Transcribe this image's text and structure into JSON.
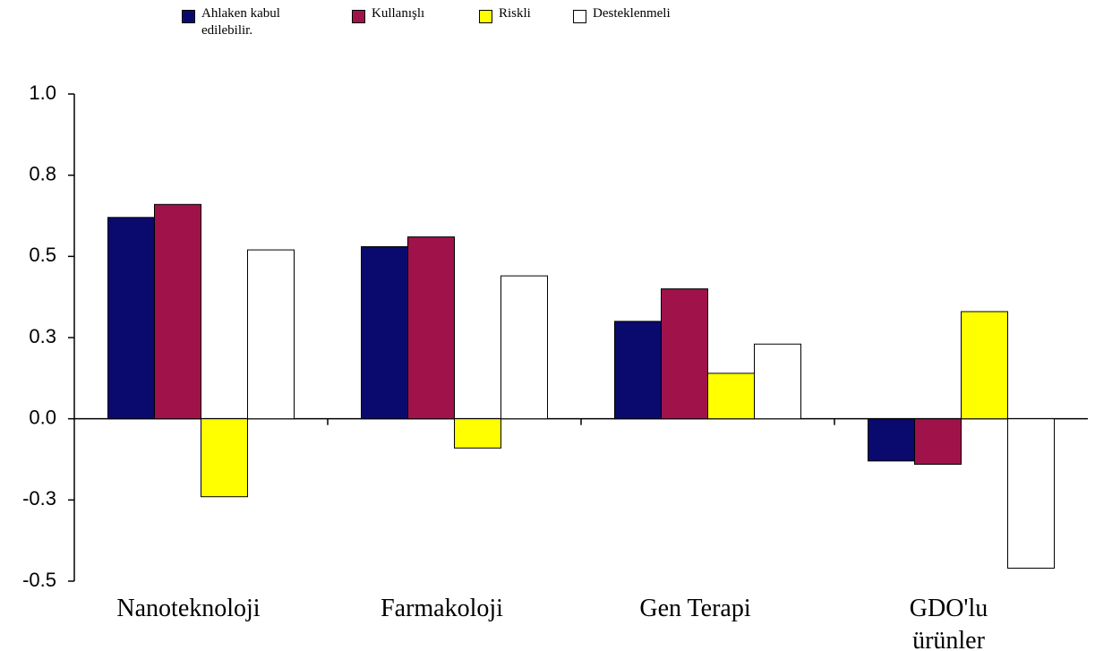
{
  "chart_data": {
    "type": "bar",
    "categories": [
      "Nanoteknoloji",
      "Farmakoloji",
      "Gen Terapi",
      "GDO'lu\nürünler"
    ],
    "series": [
      {
        "name": "Ahlaken kabul\nedilebilir.",
        "color": "#0a0a6e",
        "values": [
          0.62,
          0.53,
          0.3,
          -0.13
        ]
      },
      {
        "name": "Kullanışlı",
        "color": "#a0124a",
        "values": [
          0.66,
          0.56,
          0.4,
          -0.14
        ]
      },
      {
        "name": "Riskli",
        "color": "#ffff00",
        "values": [
          -0.24,
          -0.09,
          0.14,
          0.33
        ]
      },
      {
        "name": "Desteklenmeli",
        "color": "#ffffff",
        "values": [
          0.52,
          0.44,
          0.23,
          -0.46
        ]
      }
    ],
    "ylim": [
      -0.5,
      1
    ],
    "yticks": [
      {
        "value": -0.5,
        "label": "-0.5"
      },
      {
        "value": -0.25,
        "label": "-0.3"
      },
      {
        "value": 0,
        "label": "0.0"
      },
      {
        "value": 0.25,
        "label": "0.3"
      },
      0.5,
      {
        "value": 0.75,
        "label": "0.8"
      },
      {
        "value": 1,
        "label": "1.0"
      }
    ],
    "legend": "top"
  }
}
